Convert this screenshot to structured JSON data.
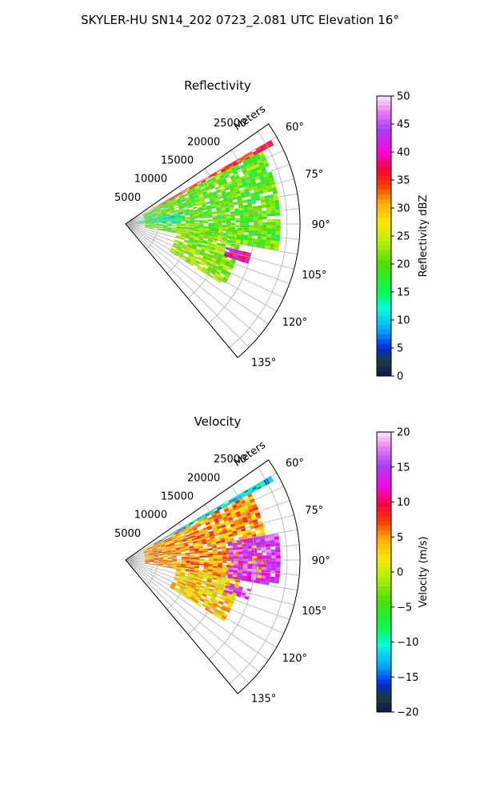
{
  "figure": {
    "title": "SKYLER-HU  SN14_202  0723_2.081 UTC Elevation 16°"
  },
  "panels": [
    {
      "title": "Reflectivity",
      "range_axis_label": "Meters",
      "range_ticks": [
        "5000",
        "10000",
        "15000",
        "20000",
        "25000"
      ],
      "azimuth_ticks": [
        "60°",
        "75°",
        "90°",
        "105°",
        "120°",
        "135°"
      ],
      "colorbar": {
        "label": "Reflectivity dBZ",
        "ticks": [
          "0",
          "5",
          "10",
          "15",
          "20",
          "25",
          "30",
          "35",
          "40",
          "45",
          "50"
        ],
        "min": 0,
        "max": 50
      }
    },
    {
      "title": "Velocity",
      "range_axis_label": "Meters",
      "range_ticks": [
        "5000",
        "10000",
        "15000",
        "20000",
        "25000"
      ],
      "azimuth_ticks": [
        "60°",
        "75°",
        "90°",
        "105°",
        "120°",
        "135°"
      ],
      "colorbar": {
        "label": "Velocity (m/s)",
        "ticks": [
          "−20",
          "−15",
          "−10",
          "−5",
          "0",
          "5",
          "10",
          "15",
          "20"
        ],
        "min": -20,
        "max": 20
      }
    }
  ],
  "chart_data": [
    {
      "type": "heatmap",
      "projection": "polar sector",
      "title": "Reflectivity",
      "theta_range_deg": [
        55,
        140
      ],
      "r_range_m": [
        0,
        27000
      ],
      "range_ticks_m": [
        5000,
        10000,
        15000,
        20000,
        25000
      ],
      "azimuth_ticks_deg": [
        60,
        75,
        90,
        105,
        120,
        135
      ],
      "grid": true,
      "colorbar_label": "Reflectivity dBZ",
      "value_range": [
        0,
        50
      ],
      "echo_regions": [
        {
          "az_deg": [
            62,
            100
          ],
          "r_m": [
            3000,
            24000
          ],
          "value": 20
        },
        {
          "az_deg": [
            60,
            62
          ],
          "r_m": [
            5000,
            26000
          ],
          "value": 35
        },
        {
          "az_deg": [
            92,
            122
          ],
          "r_m": [
            8000,
            18000
          ],
          "value": 22
        },
        {
          "az_deg": [
            103,
            108
          ],
          "r_m": [
            16000,
            20000
          ],
          "value": 40
        },
        {
          "az_deg": [
            78,
            88
          ],
          "r_m": [
            1500,
            9000
          ],
          "value": 12
        }
      ]
    },
    {
      "type": "heatmap",
      "projection": "polar sector",
      "title": "Velocity",
      "theta_range_deg": [
        55,
        140
      ],
      "r_range_m": [
        0,
        27000
      ],
      "range_ticks_m": [
        5000,
        10000,
        15000,
        20000,
        25000
      ],
      "azimuth_ticks_deg": [
        60,
        75,
        90,
        105,
        120,
        135
      ],
      "grid": true,
      "colorbar_label": "Velocity (m/s)",
      "value_range": [
        -20,
        20
      ],
      "echo_regions": [
        {
          "az_deg": [
            62,
            100
          ],
          "r_m": [
            3000,
            22000
          ],
          "value": 5
        },
        {
          "az_deg": [
            80,
            100
          ],
          "r_m": [
            16000,
            24000
          ],
          "value": 15
        },
        {
          "az_deg": [
            60,
            62
          ],
          "r_m": [
            5000,
            26000
          ],
          "value": -12
        },
        {
          "az_deg": [
            100,
            122
          ],
          "r_m": [
            8000,
            18000
          ],
          "value": 3
        },
        {
          "az_deg": [
            103,
            108
          ],
          "r_m": [
            16000,
            20000
          ],
          "value": 16
        }
      ]
    }
  ]
}
